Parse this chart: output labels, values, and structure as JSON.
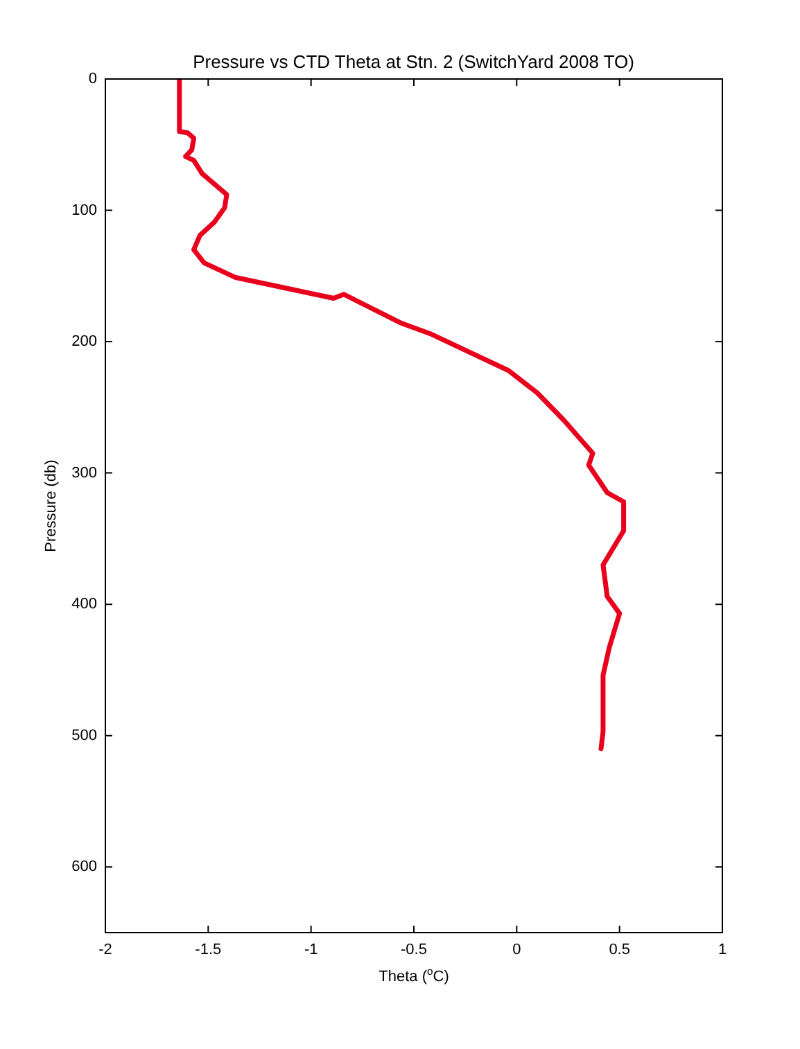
{
  "chart_data": {
    "type": "line",
    "title": "Pressure vs CTD Theta at Stn. 2 (SwitchYard 2008 TO)",
    "xlabel": "Theta ($^{o}$C)",
    "ylabel": "Pressure (db)",
    "xlim": [
      -2,
      1
    ],
    "xticks": [
      -2,
      -1.5,
      -1,
      -0.5,
      0,
      0.5,
      1
    ],
    "ylim": [
      650,
      0
    ],
    "yticks": [
      0,
      100,
      200,
      300,
      400,
      500,
      600
    ],
    "grid": false,
    "legend": false,
    "marker": "none",
    "line_style": "solid",
    "series": [
      {
        "color": "#e8001c",
        "x": [
          -1.64,
          -1.64,
          -1.6,
          -1.57,
          -1.58,
          -1.61,
          -1.57,
          -1.53,
          -1.47,
          -1.41,
          -1.42,
          -1.47,
          -1.54,
          -1.57,
          -1.52,
          -1.37,
          -1.16,
          -0.89,
          -0.84,
          -0.56,
          -0.42,
          -0.04,
          0.1,
          0.23,
          0.37,
          0.35,
          0.44,
          0.52,
          0.52,
          0.42,
          0.44,
          0.5,
          0.45,
          0.42,
          0.42,
          0.41
        ],
        "values": [
          0,
          40,
          41,
          45,
          54,
          59,
          62,
          72,
          80,
          88,
          98,
          109,
          119,
          130,
          140,
          151,
          158,
          167,
          164,
          186,
          194,
          222,
          239,
          260,
          285,
          294,
          315,
          322,
          344,
          370,
          394,
          407,
          433,
          454,
          497,
          510
        ]
      }
    ]
  }
}
